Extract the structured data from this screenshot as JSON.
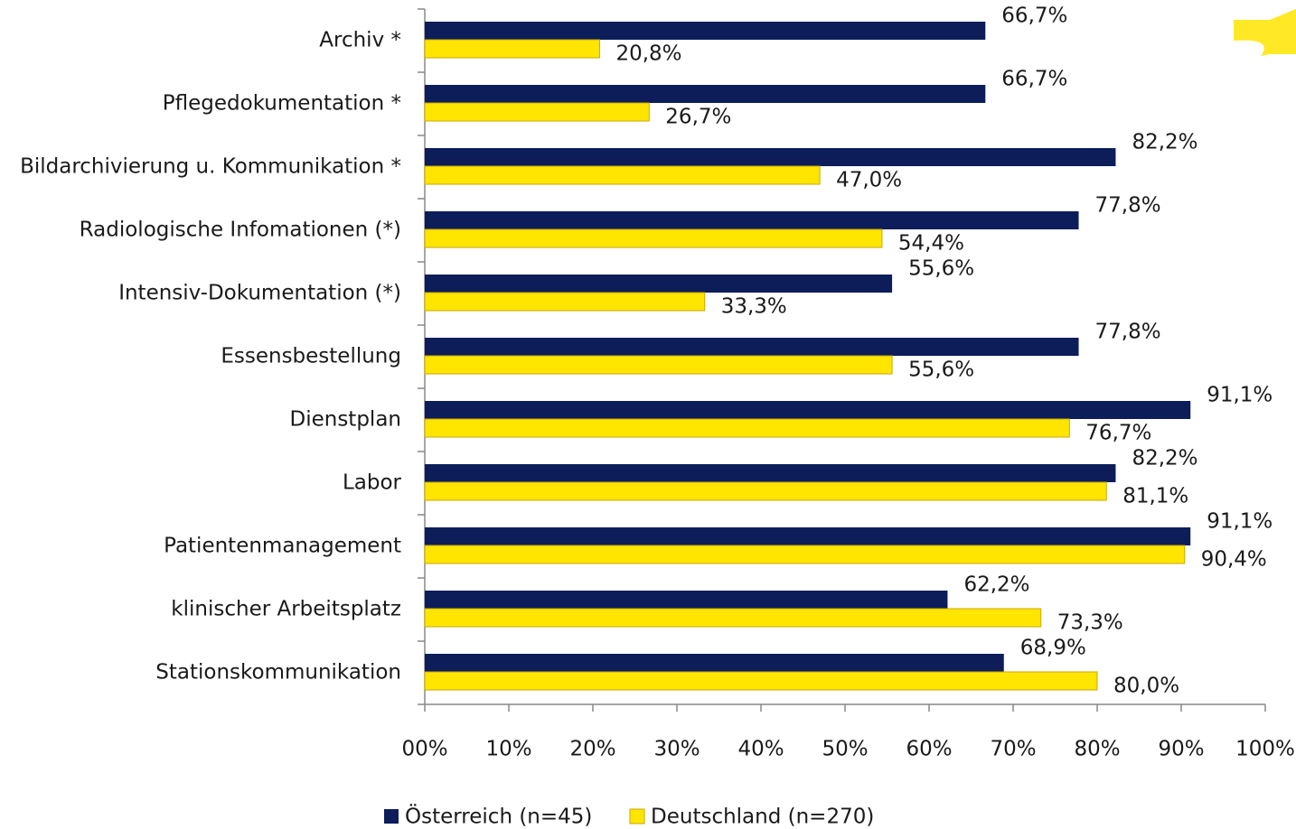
{
  "chart_data": {
    "type": "barh",
    "categories": [
      "Archiv *",
      "Pflegedokumentation *",
      "Bildarchivierung u. Kommunikation *",
      "Radiologische Infomationen (*)",
      "Intensiv-Dokumentation (*)",
      "Essensbestellung",
      "Dienstplan",
      "Labor",
      "Patientenmanagement",
      "klinischer Arbeitsplatz",
      "Stationskommunikation"
    ],
    "series": [
      {
        "name": "Österreich (n=45)",
        "color": "#0c1d5a",
        "values": [
          66.7,
          66.7,
          82.2,
          77.8,
          55.6,
          77.8,
          91.1,
          82.2,
          91.1,
          62.2,
          68.9
        ],
        "value_labels": [
          "66,7%",
          "66,7%",
          "82,2%",
          "77,8%",
          "55,6%",
          "77,8%",
          "91,1%",
          "82,2%",
          "91,1%",
          "62,2%",
          "68,9%"
        ]
      },
      {
        "name": "Deutschland (n=270)",
        "color": "#ffe500",
        "values": [
          20.8,
          26.7,
          47.0,
          54.4,
          33.3,
          55.6,
          76.7,
          81.1,
          90.4,
          73.3,
          80.0
        ],
        "value_labels": [
          "20,8%",
          "26,7%",
          "47,0%",
          "54,4%",
          "33,3%",
          "55,6%",
          "76,7%",
          "81,1%",
          "90,4%",
          "73,3%",
          "80,0%"
        ]
      }
    ],
    "xlim": [
      0,
      100
    ],
    "xticks": [
      {
        "value": 0,
        "label": "00%"
      },
      {
        "value": 10,
        "label": "10%"
      },
      {
        "value": 20,
        "label": "20%"
      },
      {
        "value": 30,
        "label": "30%"
      },
      {
        "value": 40,
        "label": "40%"
      },
      {
        "value": 50,
        "label": "50%"
      },
      {
        "value": 60,
        "label": "60%"
      },
      {
        "value": 70,
        "label": "70%"
      },
      {
        "value": 80,
        "label": "80%"
      },
      {
        "value": 90,
        "label": "90%"
      },
      {
        "value": 100,
        "label": "100%"
      }
    ],
    "legend": "bottom"
  }
}
